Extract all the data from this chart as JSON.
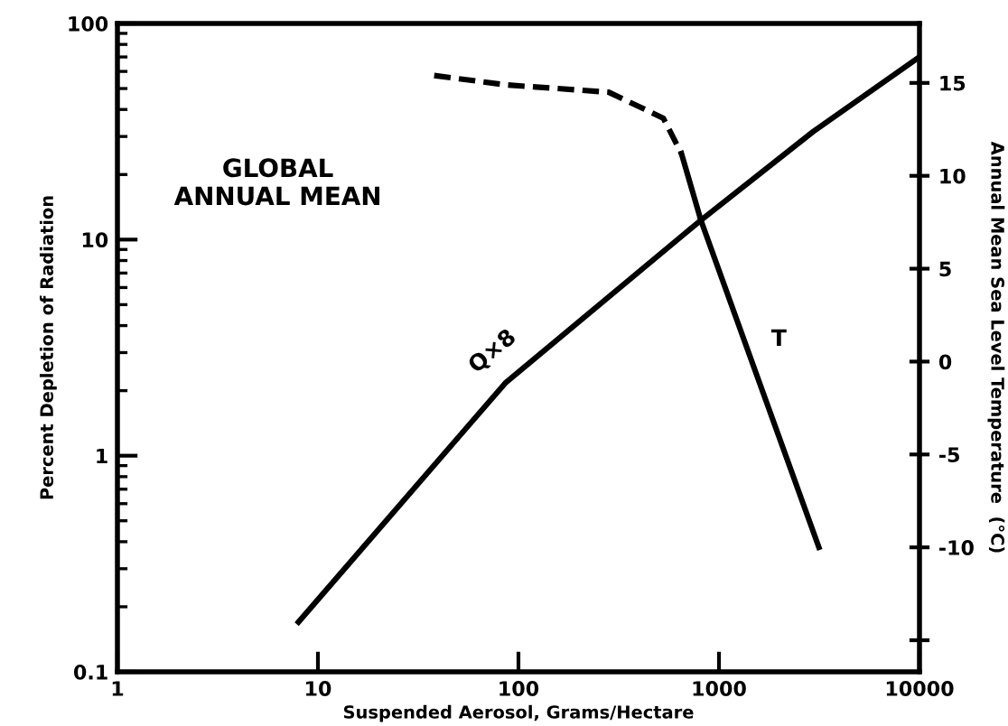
{
  "chart_data": {
    "type": "line",
    "xlabel": "Suspended Aerosol, Grams/Hectare",
    "ylabel": "Percent Depletion of Radiation",
    "y2label": "Annual Mean Sea Level Temperature  (°C)",
    "annotations": [
      "GLOBAL\nANNUAL MEAN"
    ],
    "log": "xy",
    "xlim": [
      1,
      10000
    ],
    "xticks": [
      1,
      10,
      100,
      1000,
      10000
    ],
    "ylim": [
      0.1,
      100
    ],
    "yticks": [
      0.1,
      1,
      10,
      100
    ],
    "y2lim": [
      -16.7,
      18.2
    ],
    "y2ticks": [
      {
        "value": -15,
        "label": null
      },
      -10,
      -5,
      0,
      5,
      10,
      15
    ],
    "grid": false,
    "legend": false,
    "marker": "none",
    "series": [
      {
        "name": "Q×8",
        "color": "#000000",
        "line_style": "solid",
        "x": [
          8,
          86,
          813,
          2950,
          10000
        ],
        "values": [
          0.17,
          2.17,
          12.3,
          31.6,
          70
        ]
      },
      {
        "color": "#000000",
        "axis": "y2",
        "line_style": "dashed",
        "x": [
          38,
          86,
          282,
          528,
          650
        ],
        "values": [
          15.4,
          14.9,
          14.5,
          13.1,
          11.2
        ]
      },
      {
        "name": "T",
        "color": "#000000",
        "axis": "y2",
        "line_style": "solid",
        "x": [
          650,
          813,
          3150
        ],
        "values": [
          11.2,
          7.6,
          -10
        ]
      }
    ]
  }
}
